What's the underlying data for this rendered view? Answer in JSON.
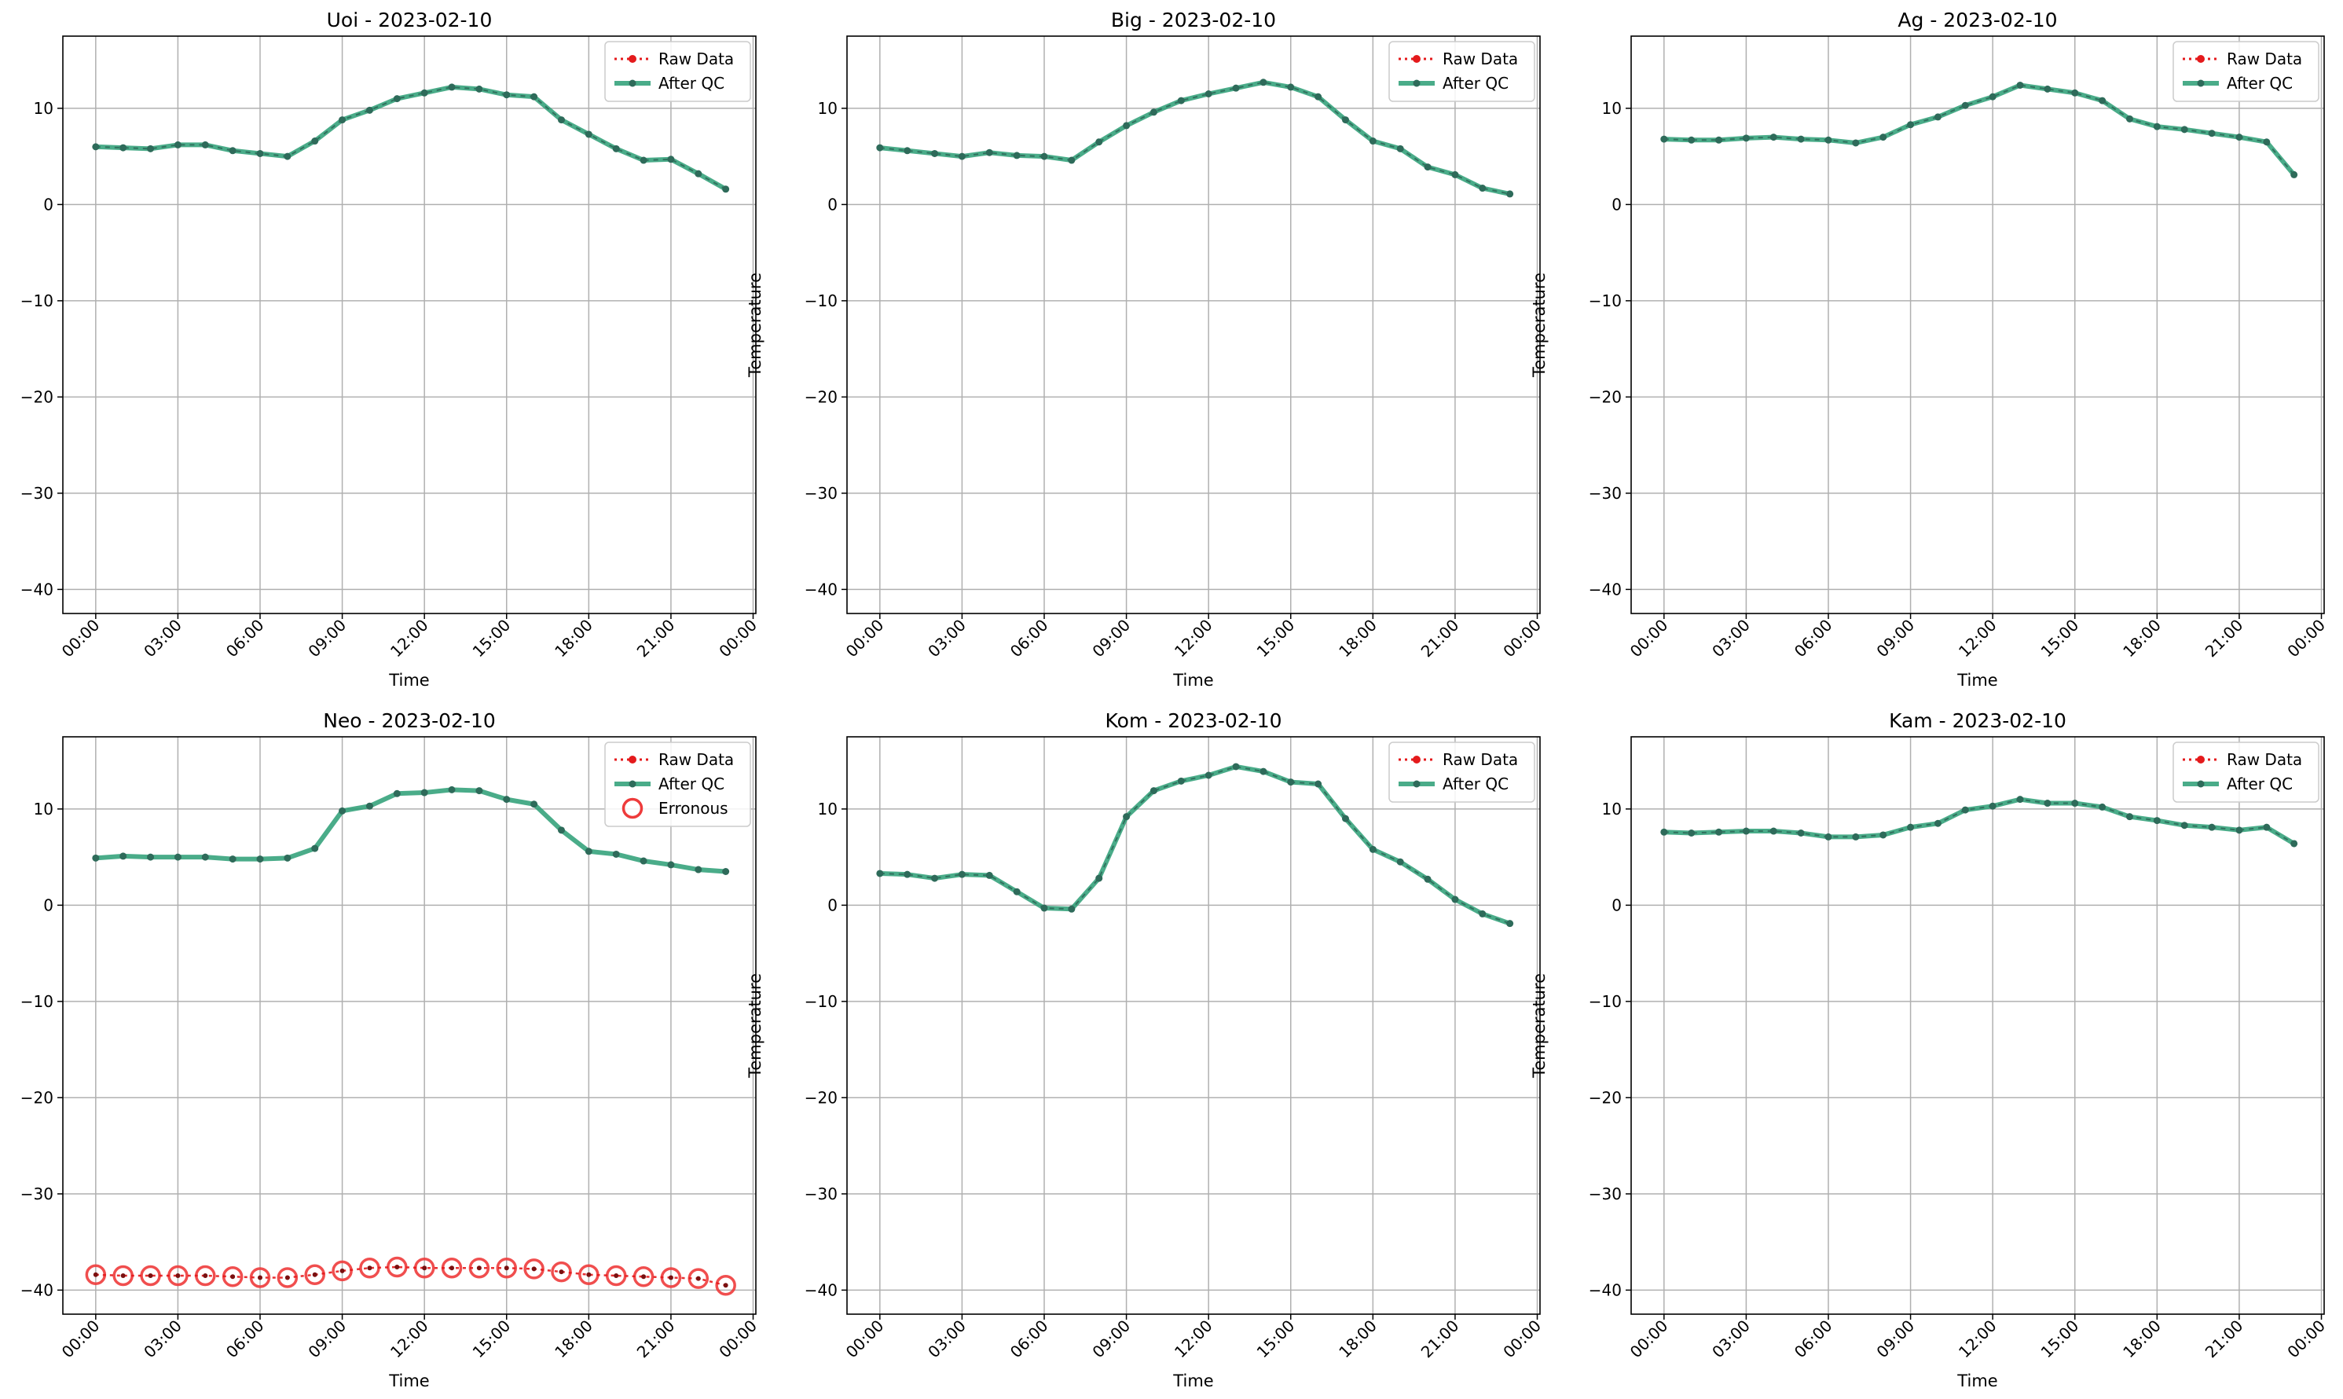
{
  "colors": {
    "raw": "#e41a1c",
    "qc": "#2a9d74",
    "qc_marker": "#2e6b5a",
    "err": "#ee3b3b",
    "grid": "#b0b0b0"
  },
  "common": {
    "xlabel": "Time",
    "ylabel": "Temperature",
    "yticks": [
      10,
      0,
      -10,
      -20,
      -30,
      -40
    ],
    "ytick_labels": [
      "10",
      "0",
      "−10",
      "−20",
      "−30",
      "−40"
    ],
    "xtick_hours": [
      0,
      3,
      6,
      9,
      12,
      15,
      18,
      21,
      24
    ],
    "xtick_labels": [
      "00:00",
      "03:00",
      "06:00",
      "09:00",
      "12:00",
      "15:00",
      "18:00",
      "21:00",
      "00:00"
    ],
    "legend": {
      "raw": "Raw Data",
      "qc": "After QC",
      "err": "Erronous"
    }
  },
  "chart_data": [
    {
      "type": "line",
      "title": "Uoi - 2023-02-10",
      "xlabel": "Time",
      "ylabel": "Temperature",
      "x_hours": [
        0,
        1,
        2,
        3,
        4,
        5,
        6,
        7,
        8,
        9,
        10,
        11,
        12,
        13,
        14,
        15,
        16,
        17,
        18,
        19,
        20,
        21,
        22,
        23
      ],
      "xlim": [
        -1.2,
        24.1
      ],
      "ylim": [
        -42.5,
        17.5
      ],
      "grid": true,
      "legend_position": "top-right",
      "series": [
        {
          "name": "Raw Data",
          "values": [
            6.0,
            5.9,
            5.8,
            6.2,
            6.2,
            5.6,
            5.3,
            5.0,
            6.6,
            8.8,
            9.8,
            11.0,
            11.6,
            12.2,
            12.0,
            11.4,
            11.2,
            8.8,
            7.3,
            5.8,
            4.6,
            4.7,
            3.2,
            1.6
          ]
        },
        {
          "name": "After QC",
          "values": [
            6.0,
            5.9,
            5.8,
            6.2,
            6.2,
            5.6,
            5.3,
            5.0,
            6.6,
            8.8,
            9.8,
            11.0,
            11.6,
            12.2,
            12.0,
            11.4,
            11.2,
            8.8,
            7.3,
            5.8,
            4.6,
            4.7,
            3.2,
            1.6
          ]
        }
      ]
    },
    {
      "type": "line",
      "title": "Big - 2023-02-10",
      "xlabel": "Time",
      "ylabel": "Temperature",
      "x_hours": [
        0,
        1,
        2,
        3,
        4,
        5,
        6,
        7,
        8,
        9,
        10,
        11,
        12,
        13,
        14,
        15,
        16,
        17,
        18,
        19,
        20,
        21,
        22,
        23
      ],
      "xlim": [
        -1.2,
        24.1
      ],
      "ylim": [
        -42.5,
        17.5
      ],
      "grid": true,
      "legend_position": "top-right",
      "series": [
        {
          "name": "Raw Data",
          "values": [
            5.9,
            5.6,
            5.3,
            5.0,
            5.4,
            5.1,
            5.0,
            4.6,
            6.5,
            8.2,
            9.6,
            10.8,
            11.5,
            12.1,
            12.7,
            12.2,
            11.2,
            8.8,
            6.6,
            5.8,
            3.9,
            3.1,
            1.7,
            1.1
          ]
        },
        {
          "name": "After QC",
          "values": [
            5.9,
            5.6,
            5.3,
            5.0,
            5.4,
            5.1,
            5.0,
            4.6,
            6.5,
            8.2,
            9.6,
            10.8,
            11.5,
            12.1,
            12.7,
            12.2,
            11.2,
            8.8,
            6.6,
            5.8,
            3.9,
            3.1,
            1.7,
            1.1
          ]
        }
      ]
    },
    {
      "type": "line",
      "title": "Ag - 2023-02-10",
      "xlabel": "Time",
      "ylabel": "Temperature",
      "x_hours": [
        0,
        1,
        2,
        3,
        4,
        5,
        6,
        7,
        8,
        9,
        10,
        11,
        12,
        13,
        14,
        15,
        16,
        17,
        18,
        19,
        20,
        21,
        22,
        23
      ],
      "xlim": [
        -1.2,
        24.1
      ],
      "ylim": [
        -42.5,
        17.5
      ],
      "grid": true,
      "legend_position": "top-right",
      "series": [
        {
          "name": "Raw Data",
          "values": [
            6.8,
            6.7,
            6.7,
            6.9,
            7.0,
            6.8,
            6.7,
            6.4,
            7.0,
            8.3,
            9.1,
            10.3,
            11.2,
            12.4,
            12.0,
            11.6,
            10.8,
            8.9,
            8.1,
            7.8,
            7.4,
            7.0,
            6.5,
            3.1
          ]
        },
        {
          "name": "After QC",
          "values": [
            6.8,
            6.7,
            6.7,
            6.9,
            7.0,
            6.8,
            6.7,
            6.4,
            7.0,
            8.3,
            9.1,
            10.3,
            11.2,
            12.4,
            12.0,
            11.6,
            10.8,
            8.9,
            8.1,
            7.8,
            7.4,
            7.0,
            6.5,
            3.1
          ]
        }
      ]
    },
    {
      "type": "line",
      "title": "Neo - 2023-02-10",
      "xlabel": "Time",
      "ylabel": "Temperature",
      "x_hours": [
        0,
        1,
        2,
        3,
        4,
        5,
        6,
        7,
        8,
        9,
        10,
        11,
        12,
        13,
        14,
        15,
        16,
        17,
        18,
        19,
        20,
        21,
        22,
        23
      ],
      "xlim": [
        -1.2,
        24.1
      ],
      "ylim": [
        -42.5,
        17.5
      ],
      "grid": true,
      "legend_position": "top-right",
      "series": [
        {
          "name": "Raw Data",
          "values": [
            -38.4,
            -38.5,
            -38.5,
            -38.5,
            -38.5,
            -38.6,
            -38.7,
            -38.7,
            -38.4,
            -38.0,
            -37.7,
            -37.6,
            -37.7,
            -37.7,
            -37.7,
            -37.7,
            -37.8,
            -38.1,
            -38.4,
            -38.5,
            -38.6,
            -38.7,
            -38.8,
            -39.5
          ]
        },
        {
          "name": "After QC",
          "values": [
            4.9,
            5.1,
            5.0,
            5.0,
            5.0,
            4.8,
            4.8,
            4.9,
            5.9,
            9.8,
            10.3,
            11.6,
            11.7,
            12.0,
            11.9,
            11.0,
            10.5,
            7.8,
            5.6,
            5.3,
            4.6,
            4.2,
            3.7,
            3.5
          ]
        },
        {
          "name": "Erronous",
          "values": [
            -38.4,
            -38.5,
            -38.5,
            -38.5,
            -38.5,
            -38.6,
            -38.7,
            -38.7,
            -38.4,
            -38.0,
            -37.7,
            -37.6,
            -37.7,
            -37.7,
            -37.7,
            -37.7,
            -37.8,
            -38.1,
            -38.4,
            -38.5,
            -38.6,
            -38.7,
            -38.8,
            -39.5
          ]
        }
      ]
    },
    {
      "type": "line",
      "title": "Kom - 2023-02-10",
      "xlabel": "Time",
      "ylabel": "Temperature",
      "x_hours": [
        0,
        1,
        2,
        3,
        4,
        5,
        6,
        7,
        8,
        9,
        10,
        11,
        12,
        13,
        14,
        15,
        16,
        17,
        18,
        19,
        20,
        21,
        22,
        23
      ],
      "xlim": [
        -1.2,
        24.1
      ],
      "ylim": [
        -42.5,
        17.5
      ],
      "grid": true,
      "legend_position": "top-right",
      "series": [
        {
          "name": "Raw Data",
          "values": [
            3.3,
            3.2,
            2.8,
            3.2,
            3.1,
            1.4,
            -0.3,
            -0.4,
            2.8,
            9.2,
            11.9,
            12.9,
            13.5,
            14.4,
            13.9,
            12.8,
            12.6,
            9.0,
            5.8,
            4.5,
            2.7,
            0.6,
            -0.9,
            -1.9
          ]
        },
        {
          "name": "After QC",
          "values": [
            3.3,
            3.2,
            2.8,
            3.2,
            3.1,
            1.4,
            -0.3,
            -0.4,
            2.8,
            9.2,
            11.9,
            12.9,
            13.5,
            14.4,
            13.9,
            12.8,
            12.6,
            9.0,
            5.8,
            4.5,
            2.7,
            0.6,
            -0.9,
            -1.9
          ]
        }
      ]
    },
    {
      "type": "line",
      "title": "Kam - 2023-02-10",
      "xlabel": "Time",
      "ylabel": "Temperature",
      "x_hours": [
        0,
        1,
        2,
        3,
        4,
        5,
        6,
        7,
        8,
        9,
        10,
        11,
        12,
        13,
        14,
        15,
        16,
        17,
        18,
        19,
        20,
        21,
        22,
        23
      ],
      "xlim": [
        -1.2,
        24.1
      ],
      "ylim": [
        -42.5,
        17.5
      ],
      "grid": true,
      "legend_position": "top-right",
      "series": [
        {
          "name": "Raw Data",
          "values": [
            7.6,
            7.5,
            7.6,
            7.7,
            7.7,
            7.5,
            7.1,
            7.1,
            7.3,
            8.1,
            8.5,
            9.9,
            10.3,
            11.0,
            10.6,
            10.6,
            10.2,
            9.2,
            8.8,
            8.3,
            8.1,
            7.8,
            8.1,
            6.4
          ]
        },
        {
          "name": "After QC",
          "values": [
            7.6,
            7.5,
            7.6,
            7.7,
            7.7,
            7.5,
            7.1,
            7.1,
            7.3,
            8.1,
            8.5,
            9.9,
            10.3,
            11.0,
            10.6,
            10.6,
            10.2,
            9.2,
            8.8,
            8.3,
            8.1,
            7.8,
            8.1,
            6.4
          ]
        }
      ]
    }
  ]
}
